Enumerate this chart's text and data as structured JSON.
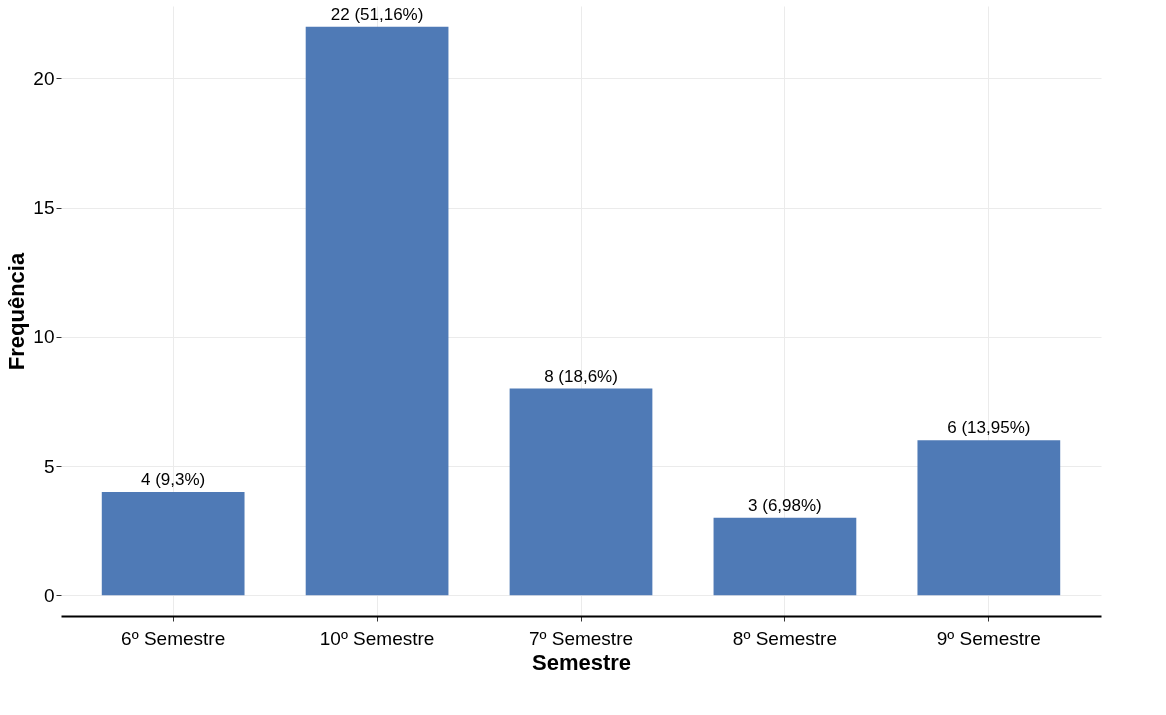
{
  "chart_data": {
    "type": "bar",
    "xlabel": "Semestre",
    "ylabel": "Frequência",
    "categories": [
      "6º Semestre",
      "10º Semestre",
      "7º Semestre",
      "8º Semestre",
      "9º Semestre"
    ],
    "values": [
      4,
      22,
      8,
      3,
      6
    ],
    "color": "#4f7ab6",
    "value_labels": [
      "4 (9,3%)",
      "22 (51,16%)",
      "8 (18,6%)",
      "3 (6,98%)",
      "6 (13,95%)"
    ],
    "ylim": [
      -0.8,
      22.8
    ],
    "yticks": [
      0,
      5,
      10,
      15,
      20
    ],
    "grid": true
  }
}
